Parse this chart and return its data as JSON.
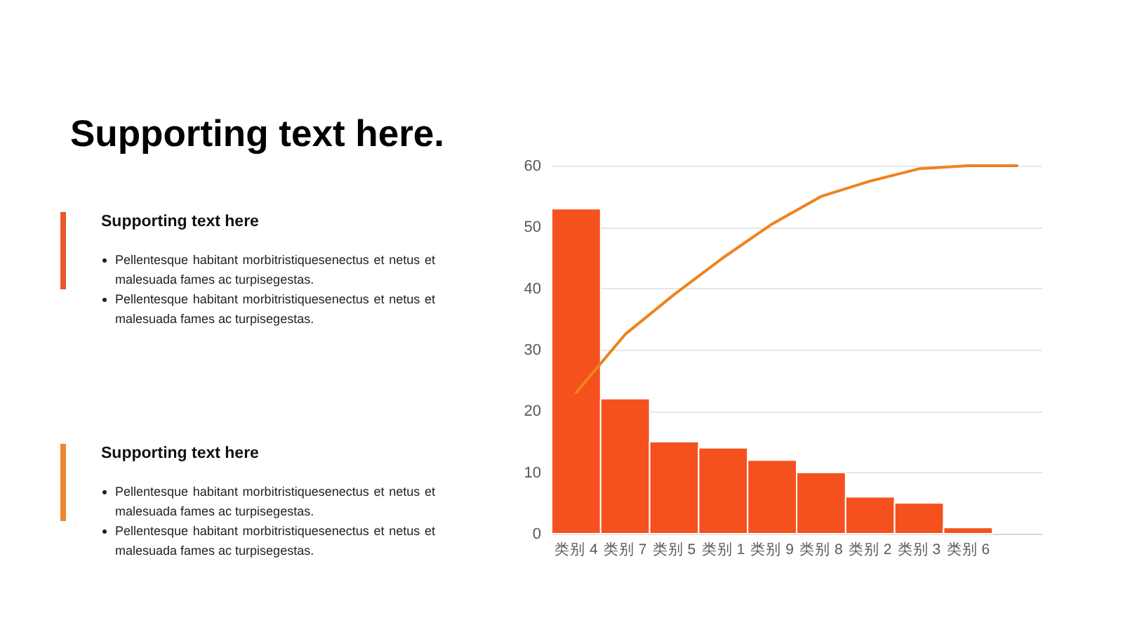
{
  "chart_data": {
    "type": "bar",
    "title": "Supporting text here.",
    "annotations": [
      "Supporting text here",
      "Pellentesque habitant morbitristiquesenectus et netus et malesuada fames ac turpisegestas.",
      "Pellentesque habitant morbitristiquesenectus et netus et malesuada fames ac turpisegestas.",
      "Supporting text here",
      "Pellentesque habitant morbitristiquesenectus et netus et malesuada fames ac turpisegestas.",
      "Pellentesque habitant morbitristiquesenectus et netus et malesuada fames ac turpisegestas."
    ],
    "categories": [
      "类别 4",
      "类别 7",
      "类别 5",
      "类别 1",
      "类别 9",
      "类别 8",
      "类别 2",
      "类别 3",
      "类别 6",
      null
    ],
    "series": [
      {
        "color": "#f4511e",
        "values": [
          53,
          22,
          15,
          14,
          12,
          10,
          6,
          5,
          1,
          null
        ]
      },
      {
        "type": "line",
        "color": "#f0821e",
        "values": [
          23,
          32.5,
          39,
          45,
          50.5,
          55,
          57.5,
          59.5,
          60,
          60
        ]
      }
    ],
    "ylim": [
      0,
      60
    ],
    "yticks": [
      0,
      10,
      20,
      30,
      40,
      50,
      60
    ],
    "grid": "y"
  }
}
